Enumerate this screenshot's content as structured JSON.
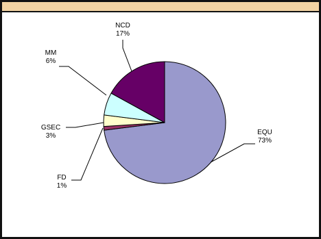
{
  "chart_data": {
    "type": "pie",
    "slices": [
      {
        "label": "EQU",
        "value": 73,
        "value_text": "73%",
        "color": "#9999cc"
      },
      {
        "label": "FD",
        "value": 1,
        "value_text": "1%",
        "color": "#993366"
      },
      {
        "label": "GSEC",
        "value": 3,
        "value_text": "3%",
        "color": "#ffffcc"
      },
      {
        "label": "MM",
        "value": 6,
        "value_text": "6%",
        "color": "#ccffff"
      },
      {
        "label": "NCD",
        "value": 17,
        "value_text": "17%",
        "color": "#660066"
      }
    ],
    "start_angle_deg": 0,
    "direction": "clockwise",
    "labels": "outside with leader lines",
    "legend": "none",
    "title": ""
  },
  "colors": {
    "frame": "#111111",
    "top_bar": "#f2d3a3",
    "slice_outline": "#000000"
  }
}
